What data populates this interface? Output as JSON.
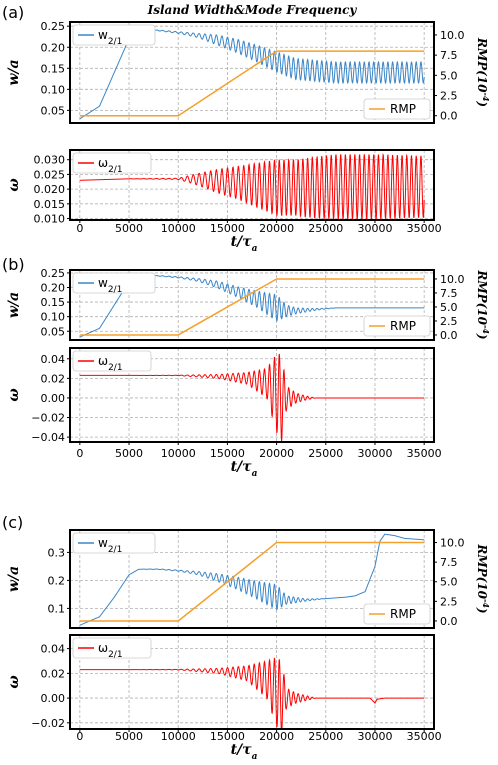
{
  "chart_data": {
    "type": "line",
    "title": "Island Width&Mode Frequency",
    "xlabel": "t/τ_a",
    "xlim": [
      -1000,
      36000
    ],
    "xticks": [
      0,
      5000,
      10000,
      15000,
      20000,
      25000,
      30000,
      35000
    ],
    "colors": {
      "width": "#3a86c8",
      "rmp": "#f5a02a",
      "omega": "#ff0000"
    },
    "grid": true,
    "panels": [
      {
        "label": "(a)",
        "width_plot": {
          "ylabel": "w/a",
          "ylim": [
            0.02,
            0.26
          ],
          "yticks": [
            "0.05",
            "0.10",
            "0.15",
            "0.20",
            "0.25"
          ],
          "ylabel_right": "RMP(10^-4)",
          "ylim_right": [
            -0.9,
            11.6
          ],
          "yticks_right": [
            "0.0",
            "2.5",
            "5.0",
            "7.5",
            "10.0"
          ],
          "legend_top_left": "w_2/1",
          "legend_bottom_right": "RMP",
          "series": [
            {
              "name": "w_2/1",
              "x": [
                0,
                2000,
                3500,
                5000,
                6000,
                8000,
                10000,
                12000,
                14000,
                16000,
                18000,
                20000,
                22000,
                26000,
                30000,
                35000
              ],
              "y": [
                0.03,
                0.06,
                0.14,
                0.22,
                0.24,
                0.24,
                0.235,
                0.228,
                0.217,
                0.203,
                0.185,
                0.165,
                0.148,
                0.14,
                0.14,
                0.14
              ],
              "amplitude": [
                0,
                0,
                0,
                0,
                0,
                0.001,
                0.002,
                0.005,
                0.012,
                0.016,
                0.02,
                0.024,
                0.025,
                0.025,
                0.025,
                0.025
              ]
            },
            {
              "name": "RMP",
              "x": [
                0,
                10000,
                20000,
                35000
              ],
              "y": [
                0,
                0,
                8,
                8
              ]
            }
          ]
        },
        "omega_plot": {
          "ylabel": "ω",
          "ylim": [
            0.0095,
            0.0333
          ],
          "yticks": [
            "0.010",
            "0.015",
            "0.020",
            "0.025",
            "0.030"
          ],
          "legend_top_left": "ω_2/1",
          "series": [
            {
              "name": "ω_2/1",
              "x": [
                0,
                5000,
                10000,
                12000,
                14000,
                16000,
                18000,
                20000,
                22000,
                24000,
                26000,
                30000,
                35000
              ],
              "y": [
                0.023,
                0.0235,
                0.0235,
                0.0233,
                0.0227,
                0.0222,
                0.0213,
                0.0205,
                0.0205,
                0.0205,
                0.0208,
                0.0208,
                0.0208
              ],
              "amplitude": [
                0,
                0,
                0.0002,
                0.002,
                0.004,
                0.0055,
                0.0075,
                0.0095,
                0.0095,
                0.0105,
                0.011,
                0.011,
                0.0105
              ]
            }
          ]
        }
      },
      {
        "label": "(b)",
        "width_plot": {
          "ylabel": "w/a",
          "ylim": [
            0.02,
            0.26
          ],
          "yticks": [
            "0.05",
            "0.10",
            "0.15",
            "0.20",
            "0.25"
          ],
          "ylabel_right": "RMP(10^-4)",
          "ylim_right": [
            -0.9,
            11.6
          ],
          "yticks_right": [
            "0.0",
            "2.5",
            "5.0",
            "7.5",
            "10.0"
          ],
          "legend_top_left": "w_2/1",
          "legend_bottom_right": "RMP",
          "series": [
            {
              "name": "w_2/1",
              "x": [
                0,
                2000,
                3500,
                5000,
                6000,
                8000,
                10000,
                12000,
                14000,
                16000,
                18000,
                20000,
                21000,
                22000,
                24000,
                26000,
                35000
              ],
              "y": [
                0.03,
                0.06,
                0.14,
                0.22,
                0.24,
                0.24,
                0.235,
                0.226,
                0.21,
                0.185,
                0.16,
                0.13,
                0.12,
                0.12,
                0.125,
                0.13,
                0.13
              ],
              "amplitude": [
                0,
                0,
                0,
                0,
                0,
                0.001,
                0.002,
                0.005,
                0.012,
                0.018,
                0.028,
                0.045,
                0.02,
                0.01,
                0.003,
                0,
                0
              ]
            },
            {
              "name": "RMP",
              "x": [
                0,
                10000,
                20000,
                35000
              ],
              "y": [
                0,
                0,
                10,
                10
              ]
            }
          ]
        },
        "omega_plot": {
          "ylabel": "ω",
          "ylim": [
            -0.045,
            0.051
          ],
          "yticks": [
            "−0.04",
            "−0.02",
            "0.00",
            "0.02",
            "0.04"
          ],
          "legend_top_left": "ω_2/1",
          "series": [
            {
              "name": "ω_2/1",
              "x": [
                0,
                5000,
                10000,
                14000,
                17000,
                19000,
                20000,
                20500,
                21000,
                22000,
                23000,
                24000,
                35000
              ],
              "y": [
                0.023,
                0.023,
                0.023,
                0.022,
                0.02,
                0.015,
                0.005,
                0,
                0,
                0,
                0,
                0,
                0
              ],
              "amplitude": [
                0,
                0,
                0.0002,
                0.002,
                0.006,
                0.015,
                0.04,
                0.045,
                0.012,
                0.005,
                0.002,
                0,
                0
              ]
            }
          ]
        }
      },
      {
        "label": "(c)",
        "width_plot": {
          "ylabel": "w/a",
          "ylim": [
            0.03,
            0.38
          ],
          "yticks": [
            "0.1",
            "0.2",
            "0.3"
          ],
          "ylabel_right": "RMP(10^-4)",
          "ylim_right": [
            -0.9,
            11.6
          ],
          "yticks_right": [
            "0.0",
            "2.5",
            "5.0",
            "7.5",
            "10.0"
          ],
          "legend_top_left": "w_2/1",
          "legend_bottom_right": "RMP",
          "series": [
            {
              "name": "w_2/1",
              "x": [
                0,
                2000,
                3500,
                5000,
                6000,
                8000,
                10000,
                12000,
                14000,
                16000,
                18000,
                20000,
                21000,
                23000,
                25000,
                27000,
                28000,
                29000,
                30000,
                30500,
                31000,
                32000,
                33000,
                35000
              ],
              "y": [
                0.04,
                0.07,
                0.14,
                0.22,
                0.24,
                0.24,
                0.235,
                0.226,
                0.21,
                0.19,
                0.165,
                0.14,
                0.13,
                0.13,
                0.135,
                0.14,
                0.145,
                0.16,
                0.25,
                0.34,
                0.365,
                0.36,
                0.35,
                0.345
              ],
              "amplitude": [
                0,
                0,
                0,
                0,
                0,
                0.001,
                0.002,
                0.006,
                0.014,
                0.022,
                0.032,
                0.045,
                0.015,
                0.004,
                0,
                0,
                0,
                0,
                0,
                0,
                0,
                0,
                0,
                0
              ]
            },
            {
              "name": "RMP",
              "x": [
                0,
                10000,
                20000,
                35000
              ],
              "y": [
                0,
                0,
                10,
                10
              ]
            }
          ]
        },
        "omega_plot": {
          "ylabel": "ω",
          "ylim": [
            -0.025,
            0.051
          ],
          "yticks": [
            "−0.02",
            "0.00",
            "0.02",
            "0.04"
          ],
          "legend_top_left": "ω_2/1",
          "series": [
            {
              "name": "ω_2/1",
              "x": [
                0,
                5000,
                10000,
                14000,
                17000,
                19000,
                20000,
                20500,
                21000,
                22000,
                23000,
                24000,
                29500,
                30000,
                30200,
                31000,
                35000
              ],
              "y": [
                0.023,
                0.023,
                0.023,
                0.022,
                0.02,
                0.015,
                0.005,
                0,
                0,
                0,
                0,
                0,
                0,
                -0.004,
                -0.001,
                0,
                0
              ],
              "amplitude": [
                0,
                0,
                0.0002,
                0.002,
                0.006,
                0.015,
                0.028,
                0.03,
                0.008,
                0.004,
                0.002,
                0,
                0,
                0,
                0,
                0,
                0
              ]
            }
          ]
        }
      }
    ]
  }
}
